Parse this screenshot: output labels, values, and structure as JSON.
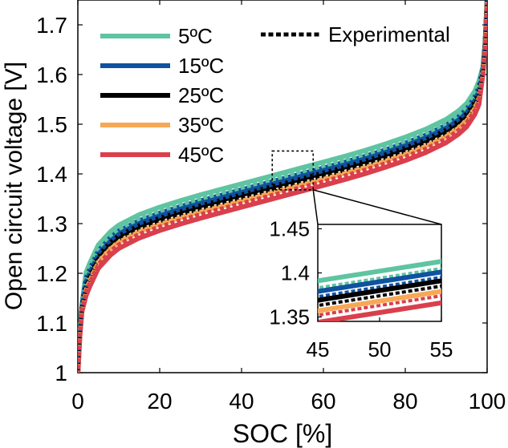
{
  "chart_data": {
    "type": "line",
    "title": "",
    "xlabel": "SOC [%]",
    "ylabel": "Open circuit voltage [V]",
    "xlim": [
      0,
      100
    ],
    "ylim": [
      1.0,
      1.75
    ],
    "xticks": [
      "0",
      "20",
      "40",
      "60",
      "80",
      "100"
    ],
    "yticks": [
      "1",
      "1.1",
      "1.2",
      "1.3",
      "1.4",
      "1.5",
      "1.6",
      "1.7"
    ],
    "x": [
      0,
      0.5,
      1,
      2,
      3,
      5,
      8,
      10,
      15,
      20,
      25,
      30,
      35,
      40,
      45,
      50,
      55,
      60,
      65,
      70,
      75,
      80,
      85,
      90,
      93,
      95,
      97,
      98,
      99,
      99.5,
      100
    ],
    "base_curve": [
      1.0,
      1.08,
      1.13,
      1.18,
      1.2,
      1.235,
      1.262,
      1.275,
      1.296,
      1.311,
      1.324,
      1.336,
      1.347,
      1.358,
      1.369,
      1.38,
      1.391,
      1.402,
      1.413,
      1.425,
      1.438,
      1.452,
      1.468,
      1.488,
      1.505,
      1.52,
      1.545,
      1.565,
      1.61,
      1.66,
      1.75
    ],
    "series": [
      {
        "name": "5ºC",
        "color": "#5ec4a1",
        "offset": 0.022,
        "exp_offset": 0.014
      },
      {
        "name": "15ºC",
        "color": "#10529f",
        "offset": 0.01,
        "exp_offset": 0.004
      },
      {
        "name": "25ºC",
        "color": "#000000",
        "offset": 0.0,
        "exp_offset": -0.006
      },
      {
        "name": "35ºC",
        "color": "#f7a856",
        "offset": -0.012,
        "exp_offset": -0.012
      },
      {
        "name": "45ºC",
        "color": "#d93f4c",
        "offset": -0.025,
        "exp_offset": -0.017
      }
    ],
    "legend": {
      "entries": [
        "5ºC",
        "15ºC",
        "25ºC",
        "35ºC",
        "45ºC"
      ],
      "experimental_label": "Experimental",
      "position": "top-left"
    },
    "inset": {
      "xlim": [
        45,
        55
      ],
      "ylim": [
        1.345,
        1.455
      ],
      "xticks": [
        "45",
        "50",
        "55"
      ],
      "yticks": [
        "1.35",
        "1.4",
        "1.45"
      ],
      "region": {
        "x": [
          47.5,
          57.5
        ],
        "y": [
          1.368,
          1.446
        ]
      }
    }
  }
}
